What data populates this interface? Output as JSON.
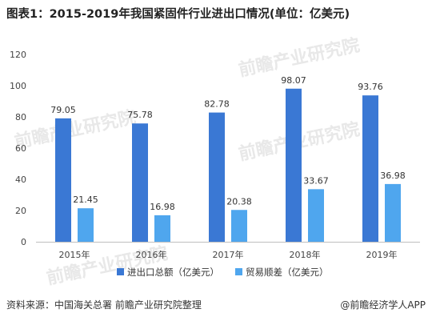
{
  "title": "图表1：2015-2019年我国紧固件行业进出口情况(单位：亿美元)",
  "footer": {
    "source": "资料来源：中国海关总署  前瞻产业研究院整理",
    "brand": "@前瞻经济学人APP"
  },
  "watermark": {
    "text": "前瞻产业研究院"
  },
  "chart_data": {
    "type": "bar",
    "title": "图表1：2015-2019年我国紧固件行业进出口情况(单位：亿美元)",
    "categories": [
      "2015年",
      "2016年",
      "2017年",
      "2018年",
      "2019年"
    ],
    "series": [
      {
        "name": "进出口总额（亿美元）",
        "color": "#3a78d4",
        "values": [
          79.05,
          75.78,
          82.78,
          98.07,
          93.76
        ]
      },
      {
        "name": "贸易顺差（亿美元）",
        "color": "#4fa6ee",
        "values": [
          21.45,
          16.98,
          20.38,
          33.67,
          36.98
        ]
      }
    ],
    "ylim": [
      0,
      120
    ],
    "yticks": [
      0,
      20,
      40,
      60,
      80,
      100,
      120
    ],
    "grid": false,
    "legend": "bottom"
  }
}
